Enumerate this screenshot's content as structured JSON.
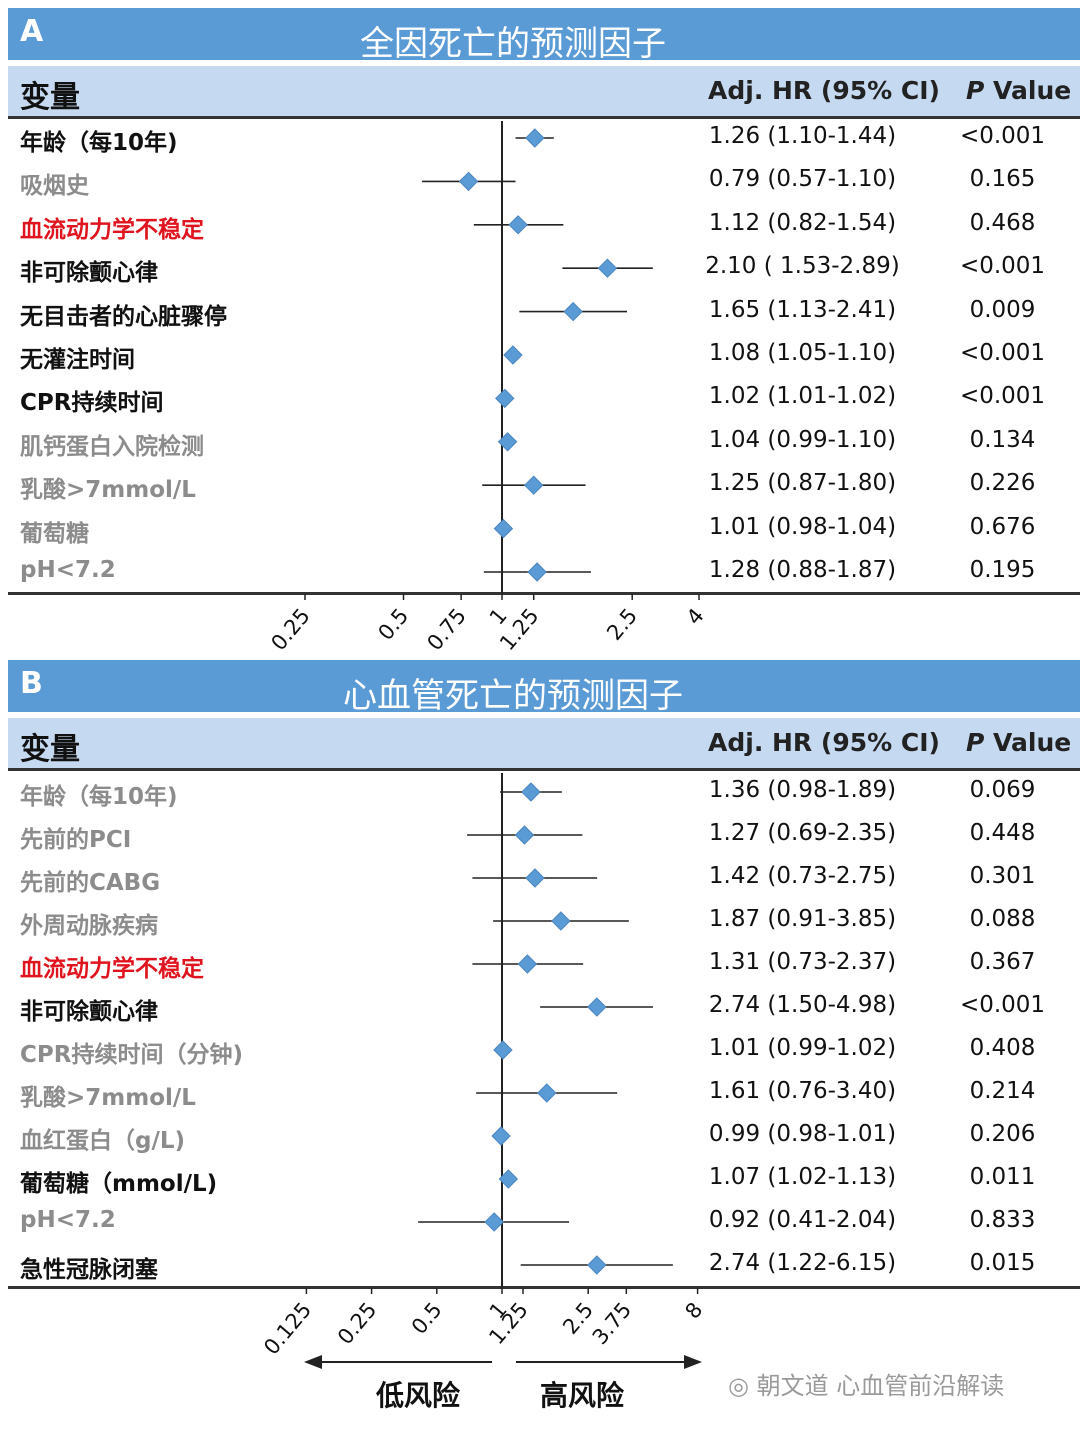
{
  "panelA": {
    "letter": "A",
    "title": "全因死亡的预测因子",
    "header": {
      "variable": "变量",
      "hr": "Adj. HR (95% CI)",
      "p_italic": "P",
      "p_rest": " Value"
    },
    "rows": [
      {
        "label": "年龄（每10年)",
        "hr_text": "1.26 (1.10-1.44)",
        "p": "<0.001",
        "style": "sig"
      },
      {
        "label": "吸烟史",
        "hr_text": "0.79 (0.57-1.10)",
        "p": "0.165",
        "style": "ns"
      },
      {
        "label": "血流动力学不稳定",
        "hr_text": "1.12 (0.82-1.54)",
        "p": "0.468",
        "style": "red"
      },
      {
        "label": "非可除颤心律",
        "hr_text": "2.10 ( 1.53-2.89)",
        "p": "<0.001",
        "style": "sig"
      },
      {
        "label": "无目击者的心脏骤停",
        "hr_text": "1.65 (1.13-2.41)",
        "p": "0.009",
        "style": "sig"
      },
      {
        "label": "无灌注时间",
        "hr_text": "1.08 (1.05-1.10)",
        "p": "<0.001",
        "style": "sig"
      },
      {
        "label": "CPR持续时间",
        "hr_text": "1.02 (1.01-1.02)",
        "p": "<0.001",
        "style": "sig"
      },
      {
        "label": "肌钙蛋白入院检测",
        "hr_text": "1.04 (0.99-1.10)",
        "p": "0.134",
        "style": "ns"
      },
      {
        "label": "乳酸>7mmol/L",
        "hr_text": "1.25 (0.87-1.80)",
        "p": "0.226",
        "style": "ns"
      },
      {
        "label": "葡萄糖",
        "hr_text": "1.01 (0.98-1.04)",
        "p": "0.676",
        "style": "ns"
      },
      {
        "label": "pH<7.2",
        "hr_text": "1.28 (0.88-1.87)",
        "p": "0.195",
        "style": "ns"
      }
    ],
    "ticks": [
      "0.25",
      "0.5",
      "0.75",
      "1",
      "1.25",
      "2.5",
      "4"
    ]
  },
  "panelB": {
    "letter": "B",
    "title": "心血管死亡的预测因子",
    "header": {
      "variable": "变量",
      "hr": "Adj. HR (95% CI)",
      "p_italic": "P",
      "p_rest": " Value"
    },
    "rows": [
      {
        "label": "年龄（每10年)",
        "hr_text": "1.36 (0.98-1.89)",
        "p": "0.069",
        "style": "ns"
      },
      {
        "label": "先前的PCI",
        "hr_text": "1.27 (0.69-2.35)",
        "p": "0.448",
        "style": "ns"
      },
      {
        "label": "先前的CABG",
        "hr_text": "1.42 (0.73-2.75)",
        "p": "0.301",
        "style": "ns"
      },
      {
        "label": "外周动脉疾病",
        "hr_text": "1.87 (0.91-3.85)",
        "p": "0.088",
        "style": "ns"
      },
      {
        "label": "血流动力学不稳定",
        "hr_text": "1.31 (0.73-2.37)",
        "p": "0.367",
        "style": "red"
      },
      {
        "label": "非可除颤心律",
        "hr_text": "2.74 (1.50-4.98)",
        "p": "<0.001",
        "style": "sig"
      },
      {
        "label": "CPR持续时间（分钟)",
        "hr_text": "1.01 (0.99-1.02)",
        "p": "0.408",
        "style": "ns"
      },
      {
        "label": "乳酸>7mmol/L",
        "hr_text": "1.61 (0.76-3.40)",
        "p": "0.214",
        "style": "ns"
      },
      {
        "label": "血红蛋白（g/L)",
        "hr_text": "0.99 (0.98-1.01)",
        "p": "0.206",
        "style": "ns"
      },
      {
        "label": "葡萄糖（mmol/L)",
        "hr_text": "1.07 (1.02-1.13)",
        "p": "0.011",
        "style": "sig"
      },
      {
        "label": "pH<7.2",
        "hr_text": "0.92 (0.41-2.04)",
        "p": "0.833",
        "style": "ns"
      },
      {
        "label": "急性冠脉闭塞",
        "hr_text": "2.74 (1.22-6.15)",
        "p": "0.015",
        "style": "sig"
      }
    ],
    "ticks": [
      "0.125",
      "0.25",
      "0.5",
      "1",
      "1.25",
      "2.5",
      "3.75",
      "8"
    ]
  },
  "risk": {
    "low": "低风险",
    "high": "高风险"
  },
  "watermark": "朝文道 心血管前沿解读",
  "colors": {
    "title_bar": "#5b9bd5",
    "header_bar": "#c5d9f1",
    "diamond": "#5b9bd5",
    "red_label": "#e0141e",
    "nonsig_label": "#8c8c8c"
  },
  "chart_data": [
    {
      "type": "forest",
      "title": "全因死亡的预测因子",
      "xscale": "log",
      "xticks": [
        0.25,
        0.5,
        0.75,
        1,
        1.25,
        2.5,
        4
      ],
      "reference": 1,
      "categories": [
        "年龄（每10年)",
        "吸烟史",
        "血流动力学不稳定",
        "非可除颤心律",
        "无目击者的心脏骤停",
        "无灌注时间",
        "CPR持续时间",
        "肌钙蛋白入院检测",
        "乳酸>7mmol/L",
        "葡萄糖",
        "pH<7.2"
      ],
      "hr": [
        1.26,
        0.79,
        1.12,
        2.1,
        1.65,
        1.08,
        1.02,
        1.04,
        1.25,
        1.01,
        1.28
      ],
      "ci_low": [
        1.1,
        0.57,
        0.82,
        1.53,
        1.13,
        1.05,
        1.01,
        0.99,
        0.87,
        0.98,
        0.88
      ],
      "ci_high": [
        1.44,
        1.1,
        1.54,
        2.89,
        2.41,
        1.1,
        1.02,
        1.1,
        1.8,
        1.04,
        1.87
      ]
    },
    {
      "type": "forest",
      "title": "心血管死亡的预测因子",
      "xscale": "log",
      "xticks": [
        0.125,
        0.25,
        0.5,
        1,
        1.25,
        2.5,
        3.75,
        8
      ],
      "reference": 1,
      "categories": [
        "年龄（每10年)",
        "先前的PCI",
        "先前的CABG",
        "外周动脉疾病",
        "血流动力学不稳定",
        "非可除颤心律",
        "CPR持续时间（分钟)",
        "乳酸>7mmol/L",
        "血红蛋白（g/L)",
        "葡萄糖（mmol/L)",
        "pH<7.2",
        "急性冠脉闭塞"
      ],
      "hr": [
        1.36,
        1.27,
        1.42,
        1.87,
        1.31,
        2.74,
        1.01,
        1.61,
        0.99,
        1.07,
        0.92,
        2.74
      ],
      "ci_low": [
        0.98,
        0.69,
        0.73,
        0.91,
        0.73,
        1.5,
        0.99,
        0.76,
        0.98,
        1.02,
        0.41,
        1.22
      ],
      "ci_high": [
        1.89,
        2.35,
        2.75,
        3.85,
        2.37,
        4.98,
        1.02,
        3.4,
        1.01,
        1.13,
        2.04,
        6.15
      ]
    }
  ]
}
